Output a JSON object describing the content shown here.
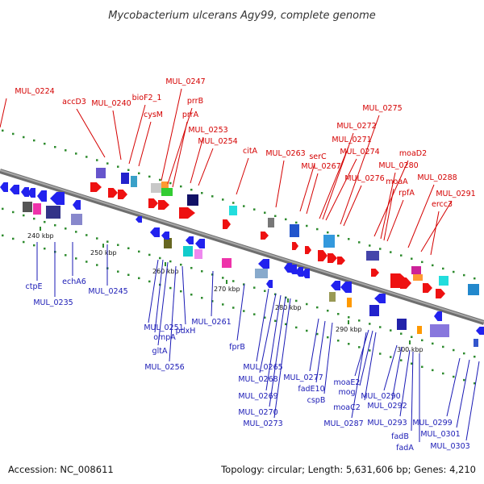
{
  "title": "Mycobacterium ulcerans Agy99, complete genome",
  "footer": {
    "accession": "Accession: NC_008611",
    "summary": "Topology: circular; Length: 5,631,606 bp; Genes: 4,210"
  },
  "scale_labels": [
    "240 kbp",
    "250 kbp",
    "260 kbp",
    "270 kbp",
    "280 kbp",
    "290 kbp",
    "300 kbp"
  ],
  "forward_labels": [
    "MUL_0224",
    "accD3",
    "MUL_0240",
    "bioF2_1",
    "cysM",
    "MUL_0247",
    "prrB",
    "prrA",
    "MUL_0253",
    "MUL_0254",
    "citA",
    "MUL_0263",
    "serC",
    "MUL_0267",
    "MUL_0271",
    "MUL_0272",
    "MUL_0274",
    "MUL_0275",
    "MUL_0276",
    "moaD2",
    "MUL_0280",
    "moaA",
    "rpfA",
    "MUL_0288",
    "MUL_0291",
    "ercc3"
  ],
  "reverse_labels": [
    "ctpE",
    "echA6",
    "MUL_0235",
    "MUL_0245",
    "MUL_0251",
    "ompA",
    "gltA",
    "pdxH",
    "MUL_0256",
    "MUL_0261",
    "fprB",
    "MUL_0265",
    "MUL_0268",
    "MUL_0269",
    "MUL_0270",
    "MUL_0273",
    "MUL_0277",
    "fadE10",
    "cspB",
    "MUL_0287",
    "moaE2",
    "mog",
    "moaC2",
    "MUL_0290",
    "MUL_0292",
    "MUL_0293",
    "fadB",
    "fadA",
    "MUL_0299",
    "MUL_0301",
    "MUL_0303"
  ]
}
